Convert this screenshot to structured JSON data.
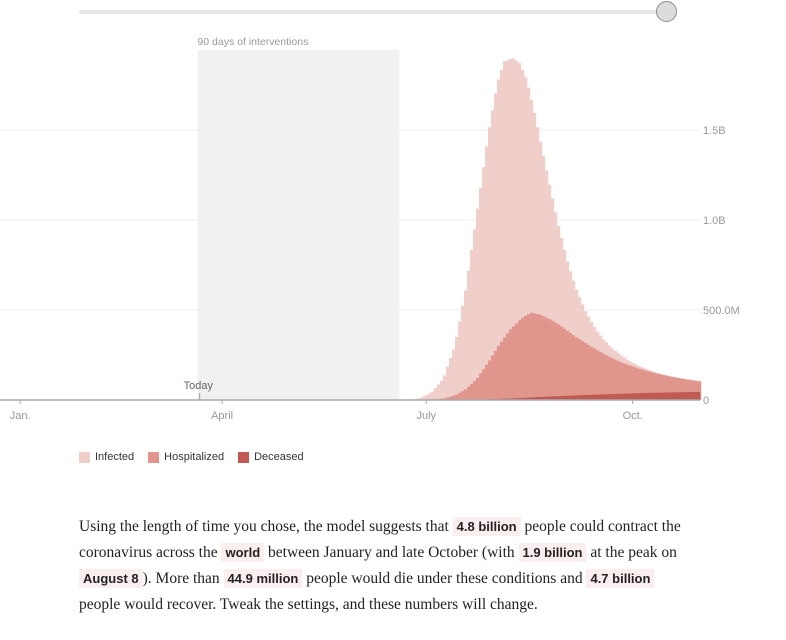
{
  "colors": {
    "infected": "#f0ceca",
    "hospitalized": "#e0958d",
    "deceased": "#c05a52",
    "intervention": "#f1f1f1"
  },
  "slider": {
    "value": 1.0
  },
  "chart_data": {
    "type": "area",
    "stacked": false,
    "x_label": "",
    "y_label": "",
    "x_range": [
      "Dec 23",
      "Oct 31"
    ],
    "y_range": [
      0,
      2000000000
    ],
    "x_ticks": [
      "Jan.",
      "April",
      "July",
      "Oct."
    ],
    "y_ticks": [
      "500.0M",
      "1.0B",
      "1.5B",
      "0"
    ],
    "grid": true,
    "y_axis_position": "right",
    "annotations": {
      "intervention_label": "90 days of interventions",
      "intervention_range": [
        "March 21",
        "June 19"
      ],
      "today_label": "Today",
      "today_date": "March 22"
    },
    "series": [
      {
        "name": "Infected",
        "x": [
          "June 18",
          "June 23",
          "June 28",
          "July 3",
          "July 8",
          "July 13",
          "July 18",
          "July 23",
          "July 28",
          "Aug 1",
          "Aug 4",
          "Aug 8",
          "Aug 11",
          "Aug 14",
          "Aug 17",
          "Aug 20",
          "Aug 24",
          "Aug 28",
          "Sept 1",
          "Sept 5",
          "Sept 9",
          "Sept 13",
          "Sept 17",
          "Sept 21",
          "Sept 25",
          "Sept 29",
          "Oct 3",
          "Oct 8",
          "Oct 13",
          "Oct 18",
          "Oct 23",
          "Oct 31"
        ],
        "values": [
          0,
          2000000,
          12000000,
          45000000,
          120000000,
          300000000,
          620000000,
          1050000000,
          1480000000,
          1760000000,
          1880000000,
          1900000000,
          1870000000,
          1780000000,
          1630000000,
          1450000000,
          1210000000,
          980000000,
          780000000,
          620000000,
          500000000,
          410000000,
          340000000,
          290000000,
          250000000,
          215000000,
          190000000,
          165000000,
          145000000,
          130000000,
          118000000,
          105000000
        ]
      },
      {
        "name": "Hospitalized",
        "x": [
          "June 18",
          "June 28",
          "July 8",
          "July 13",
          "July 18",
          "July 23",
          "July 28",
          "Aug 2",
          "Aug 7",
          "Aug 12",
          "Aug 16",
          "Aug 20",
          "Aug 25",
          "Aug 30",
          "Sept 5",
          "Sept 12",
          "Sept 19",
          "Sept 26",
          "Oct 3",
          "Oct 10",
          "Oct 17",
          "Oct 24",
          "Oct 31"
        ],
        "values": [
          0,
          1000000,
          8000000,
          25000000,
          60000000,
          120000000,
          210000000,
          310000000,
          395000000,
          455000000,
          485000000,
          475000000,
          445000000,
          405000000,
          350000000,
          295000000,
          245000000,
          205000000,
          175000000,
          150000000,
          130000000,
          115000000,
          100000000
        ]
      },
      {
        "name": "Deceased",
        "x": [
          "July 8",
          "July 23",
          "Aug 7",
          "Aug 22",
          "Sept 6",
          "Sept 21",
          "Oct 6",
          "Oct 21",
          "Oct 31"
        ],
        "values": [
          0,
          2000000,
          8000000,
          18000000,
          26000000,
          33000000,
          39000000,
          43000000,
          44900000
        ]
      }
    ]
  },
  "summary": {
    "t1": "Using the length of time you chose, the model suggests that",
    "total_infected": "4.8 billion",
    "t2": "people could contract the coronavirus across the",
    "region": "world",
    "t3": "between January and late October (with",
    "peak_value": "1.9 billion",
    "t4": "at the peak on",
    "peak_date": "August 8",
    "t5": "). More than",
    "deaths": "44.9 million",
    "t6": "people would die under these conditions and",
    "recovered": "4.7 billion",
    "t7": "people would recover. Tweak the settings, and these numbers will change."
  }
}
